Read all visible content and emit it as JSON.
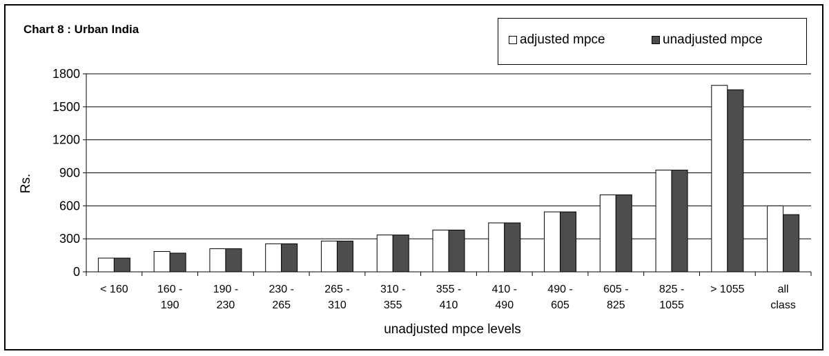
{
  "chart_data": {
    "type": "bar",
    "title": "Chart 8 : Urban India",
    "xlabel": "unadjusted  mpce  levels",
    "ylabel": "Rs.",
    "ylim": [
      0,
      1800
    ],
    "yticks": [
      "0",
      "300",
      "600",
      "900",
      "1200",
      "1500",
      "1800"
    ],
    "grid": true,
    "legend_position": "top-right",
    "categories": [
      [
        "< 160"
      ],
      [
        "160 -",
        "190"
      ],
      [
        "190 -",
        "230"
      ],
      [
        "230 -",
        "265"
      ],
      [
        "265 -",
        "310"
      ],
      [
        "310 -",
        "355"
      ],
      [
        "355 -",
        "410"
      ],
      [
        "410 -",
        "490"
      ],
      [
        "490 -",
        "605"
      ],
      [
        "605 -",
        "825"
      ],
      [
        "825 -",
        "1055"
      ],
      [
        "> 1055"
      ],
      [
        "all",
        "class"
      ]
    ],
    "series": [
      {
        "name": "adjusted mpce",
        "color": "#ffffff",
        "values": [
          125,
          185,
          210,
          255,
          280,
          335,
          380,
          445,
          545,
          700,
          925,
          1695,
          600
        ]
      },
      {
        "name": "unadjusted mpce",
        "color": "#4d4d4d",
        "values": [
          125,
          170,
          210,
          255,
          280,
          335,
          380,
          445,
          545,
          700,
          925,
          1655,
          520
        ]
      }
    ]
  }
}
